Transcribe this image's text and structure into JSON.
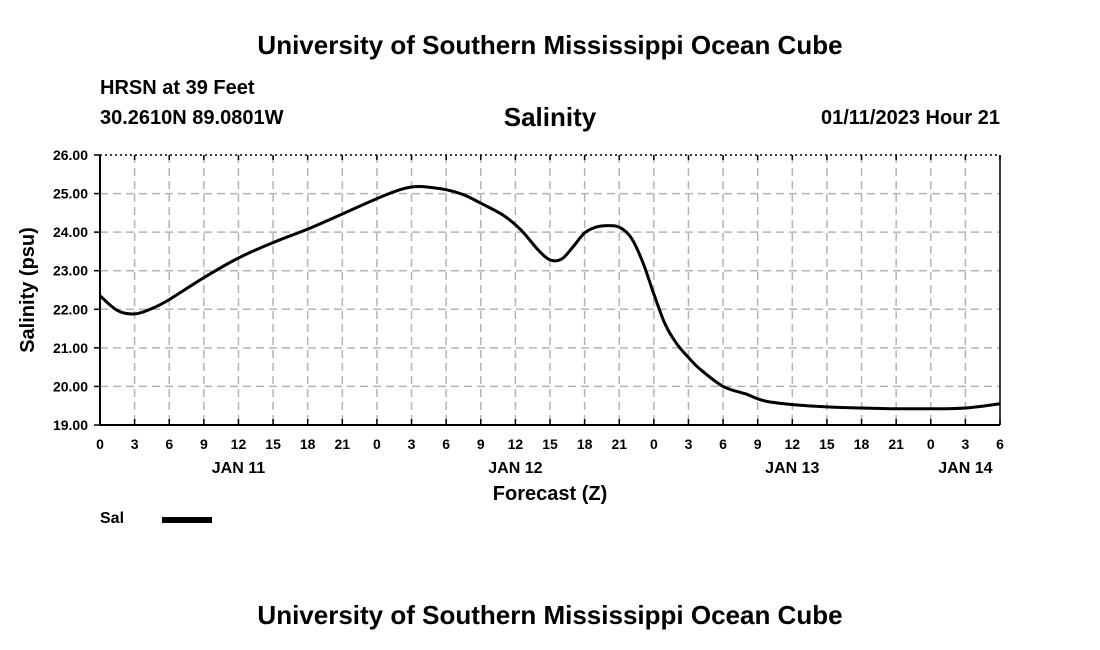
{
  "header": {
    "title": "University of Southern Mississippi Ocean Cube",
    "station": "HRSN at 39 Feet",
    "coordinates": "30.2610N  89.0801W",
    "datetime": "01/11/2023 Hour 21"
  },
  "footer": {
    "title": "University of Southern Mississippi Ocean Cube"
  },
  "chart_data": {
    "type": "line",
    "title": "Salinity",
    "xlabel": "Forecast (Z)",
    "ylabel": "Salinity (psu)",
    "ylim": [
      19,
      26
    ],
    "yticks": [
      "19.00",
      "20.00",
      "21.00",
      "22.00",
      "23.00",
      "24.00",
      "25.00",
      "26.00"
    ],
    "xlim_hours": [
      0,
      78
    ],
    "xticks": [
      "0",
      "3",
      "6",
      "9",
      "12",
      "15",
      "18",
      "21",
      "0",
      "3",
      "6",
      "9",
      "12",
      "15",
      "18",
      "21",
      "0",
      "3",
      "6",
      "9",
      "12",
      "15",
      "18",
      "21",
      "0",
      "3",
      "6"
    ],
    "date_labels": [
      {
        "label": "JAN 11",
        "hour": 12
      },
      {
        "label": "JAN 12",
        "hour": 36
      },
      {
        "label": "JAN 13",
        "hour": 60
      },
      {
        "label": "JAN 14",
        "hour": 75
      }
    ],
    "grid": true,
    "series": [
      {
        "name": "Sal",
        "color": "#000000",
        "x": [
          0,
          1.5,
          3,
          4.5,
          6,
          9,
          12,
          15,
          18,
          21,
          24,
          26,
          27,
          28,
          30,
          31.5,
          33,
          35,
          36.5,
          38,
          39,
          40,
          41,
          42,
          43,
          44,
          45,
          46,
          47,
          48,
          49,
          50,
          51,
          52,
          54,
          56,
          57,
          58,
          60,
          63,
          66,
          69,
          72,
          75,
          78
        ],
        "values": [
          22.35,
          21.97,
          21.88,
          22.02,
          22.25,
          22.82,
          23.33,
          23.73,
          24.08,
          24.47,
          24.87,
          25.1,
          25.17,
          25.18,
          25.1,
          24.97,
          24.75,
          24.43,
          24.05,
          23.53,
          23.28,
          23.3,
          23.62,
          23.98,
          24.13,
          24.17,
          24.13,
          23.87,
          23.25,
          22.4,
          21.6,
          21.1,
          20.75,
          20.45,
          20.0,
          19.8,
          19.68,
          19.6,
          19.53,
          19.47,
          19.44,
          19.42,
          19.42,
          19.44,
          19.55
        ]
      }
    ],
    "legend": "bottom-left"
  }
}
